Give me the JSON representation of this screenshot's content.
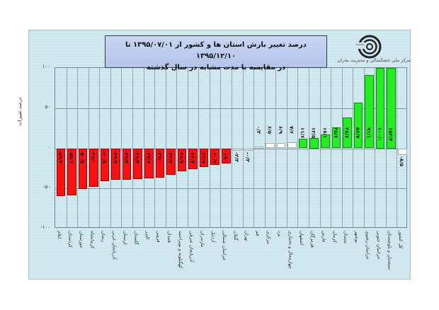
{
  "title": {
    "line1": "درصد تغییر بارش استان ها و کشور از  ۱۳۹۵/۰۷/۰۱ تا ۱۳۹۵/۱۲/۱۰",
    "line2": "در مقایسه با مدت مشابه در سال گذشته"
  },
  "logo": {
    "caption": "مرکز ملی خشکسالی و مدیریت بحران",
    "icon": "spiral-logo-icon"
  },
  "colors": {
    "negative": "#ff1010",
    "positive": "#22ee22",
    "near_zero": "#ffffff",
    "background": "#cde6ee",
    "title_box": "#bccbee"
  },
  "chart_data": {
    "type": "bar",
    "title": "درصد تغییر بارش استان ها و کشور از ۱۳۹۵/۰۷/۰۱ تا ۱۳۹۵/۱۲/۱۰ در مقایسه با مدت مشابه در سال گذشته",
    "xlabel": "",
    "ylabel": "درصد تغییرات",
    "ylim": [
      -100,
      100
    ],
    "yticks": [
      "۱۰۰",
      "۵۰",
      "۰",
      "-۵۰",
      "-۱۰۰"
    ],
    "ytick_values": [
      100,
      50,
      0,
      -50,
      -100
    ],
    "grid": true,
    "legend": "none",
    "categories": [
      "ایلام",
      "کردستان",
      "خوزستان",
      "کرمانشاه",
      "زنجان",
      "آذربایجان غربی",
      "لرستان",
      "گلستان",
      "البرز",
      "قزوین",
      "همدان",
      "کهگیلویه و بویراحمد",
      "آذربایجان شرقی",
      "مازندران",
      "اردبیل",
      "خراسان شمالی",
      "گیلان",
      "تهران",
      "قم",
      "مرکزی",
      "یزد",
      "چهارمحال و بختیاری",
      "اصفهان",
      "هرمزگان",
      "فارس",
      "کرمان",
      "سمنان",
      "بوشهر",
      "خراسان رضوی",
      "خراسان جنوبی",
      "سیستان و بلوچستان",
      "کل کشور"
    ],
    "values": [
      -59.3,
      -58.6,
      -50.5,
      -48.0,
      -40.8,
      -39.4,
      -39.4,
      -38.4,
      -37.6,
      -37.0,
      -33.2,
      -28.7,
      -26.4,
      -23.7,
      -20.6,
      -19.0,
      -2.3,
      -0.3,
      0.3,
      6.5,
      6.9,
      7.6,
      11.6,
      12.5,
      17.1,
      25.6,
      38.6,
      56.7,
      91.1,
      100.0,
      152.4,
      -8.5
    ],
    "value_labels": [
      "-۵۹/۳",
      "-۵۸/۶",
      "-۵۰/۵",
      "-۴۸/۰",
      "-۴۰/۸",
      "-۳۹/۴",
      "-۳۹/۴",
      "-۳۸/۴",
      "-۳۷/۶",
      "-۳۷/۰",
      "-۳۳/۲",
      "-۲۸/۷",
      "-۲۶/۴",
      "-۲۳/۷",
      "-۲۰/۶",
      "-۱۹/۰",
      "-۲/۳",
      "-۰/۳",
      "۰/۳",
      "۶/۵",
      "۶/۹",
      "۷/۶",
      "۱۱/۶",
      "۱۲/۵",
      "۱۷/۱",
      "۲۵/۶",
      "۳۸/۶",
      "۵۶/۷",
      "۹۱/۱",
      "۱۰۰/۰",
      "۱۵۲/۴",
      "-۸/۵"
    ]
  }
}
